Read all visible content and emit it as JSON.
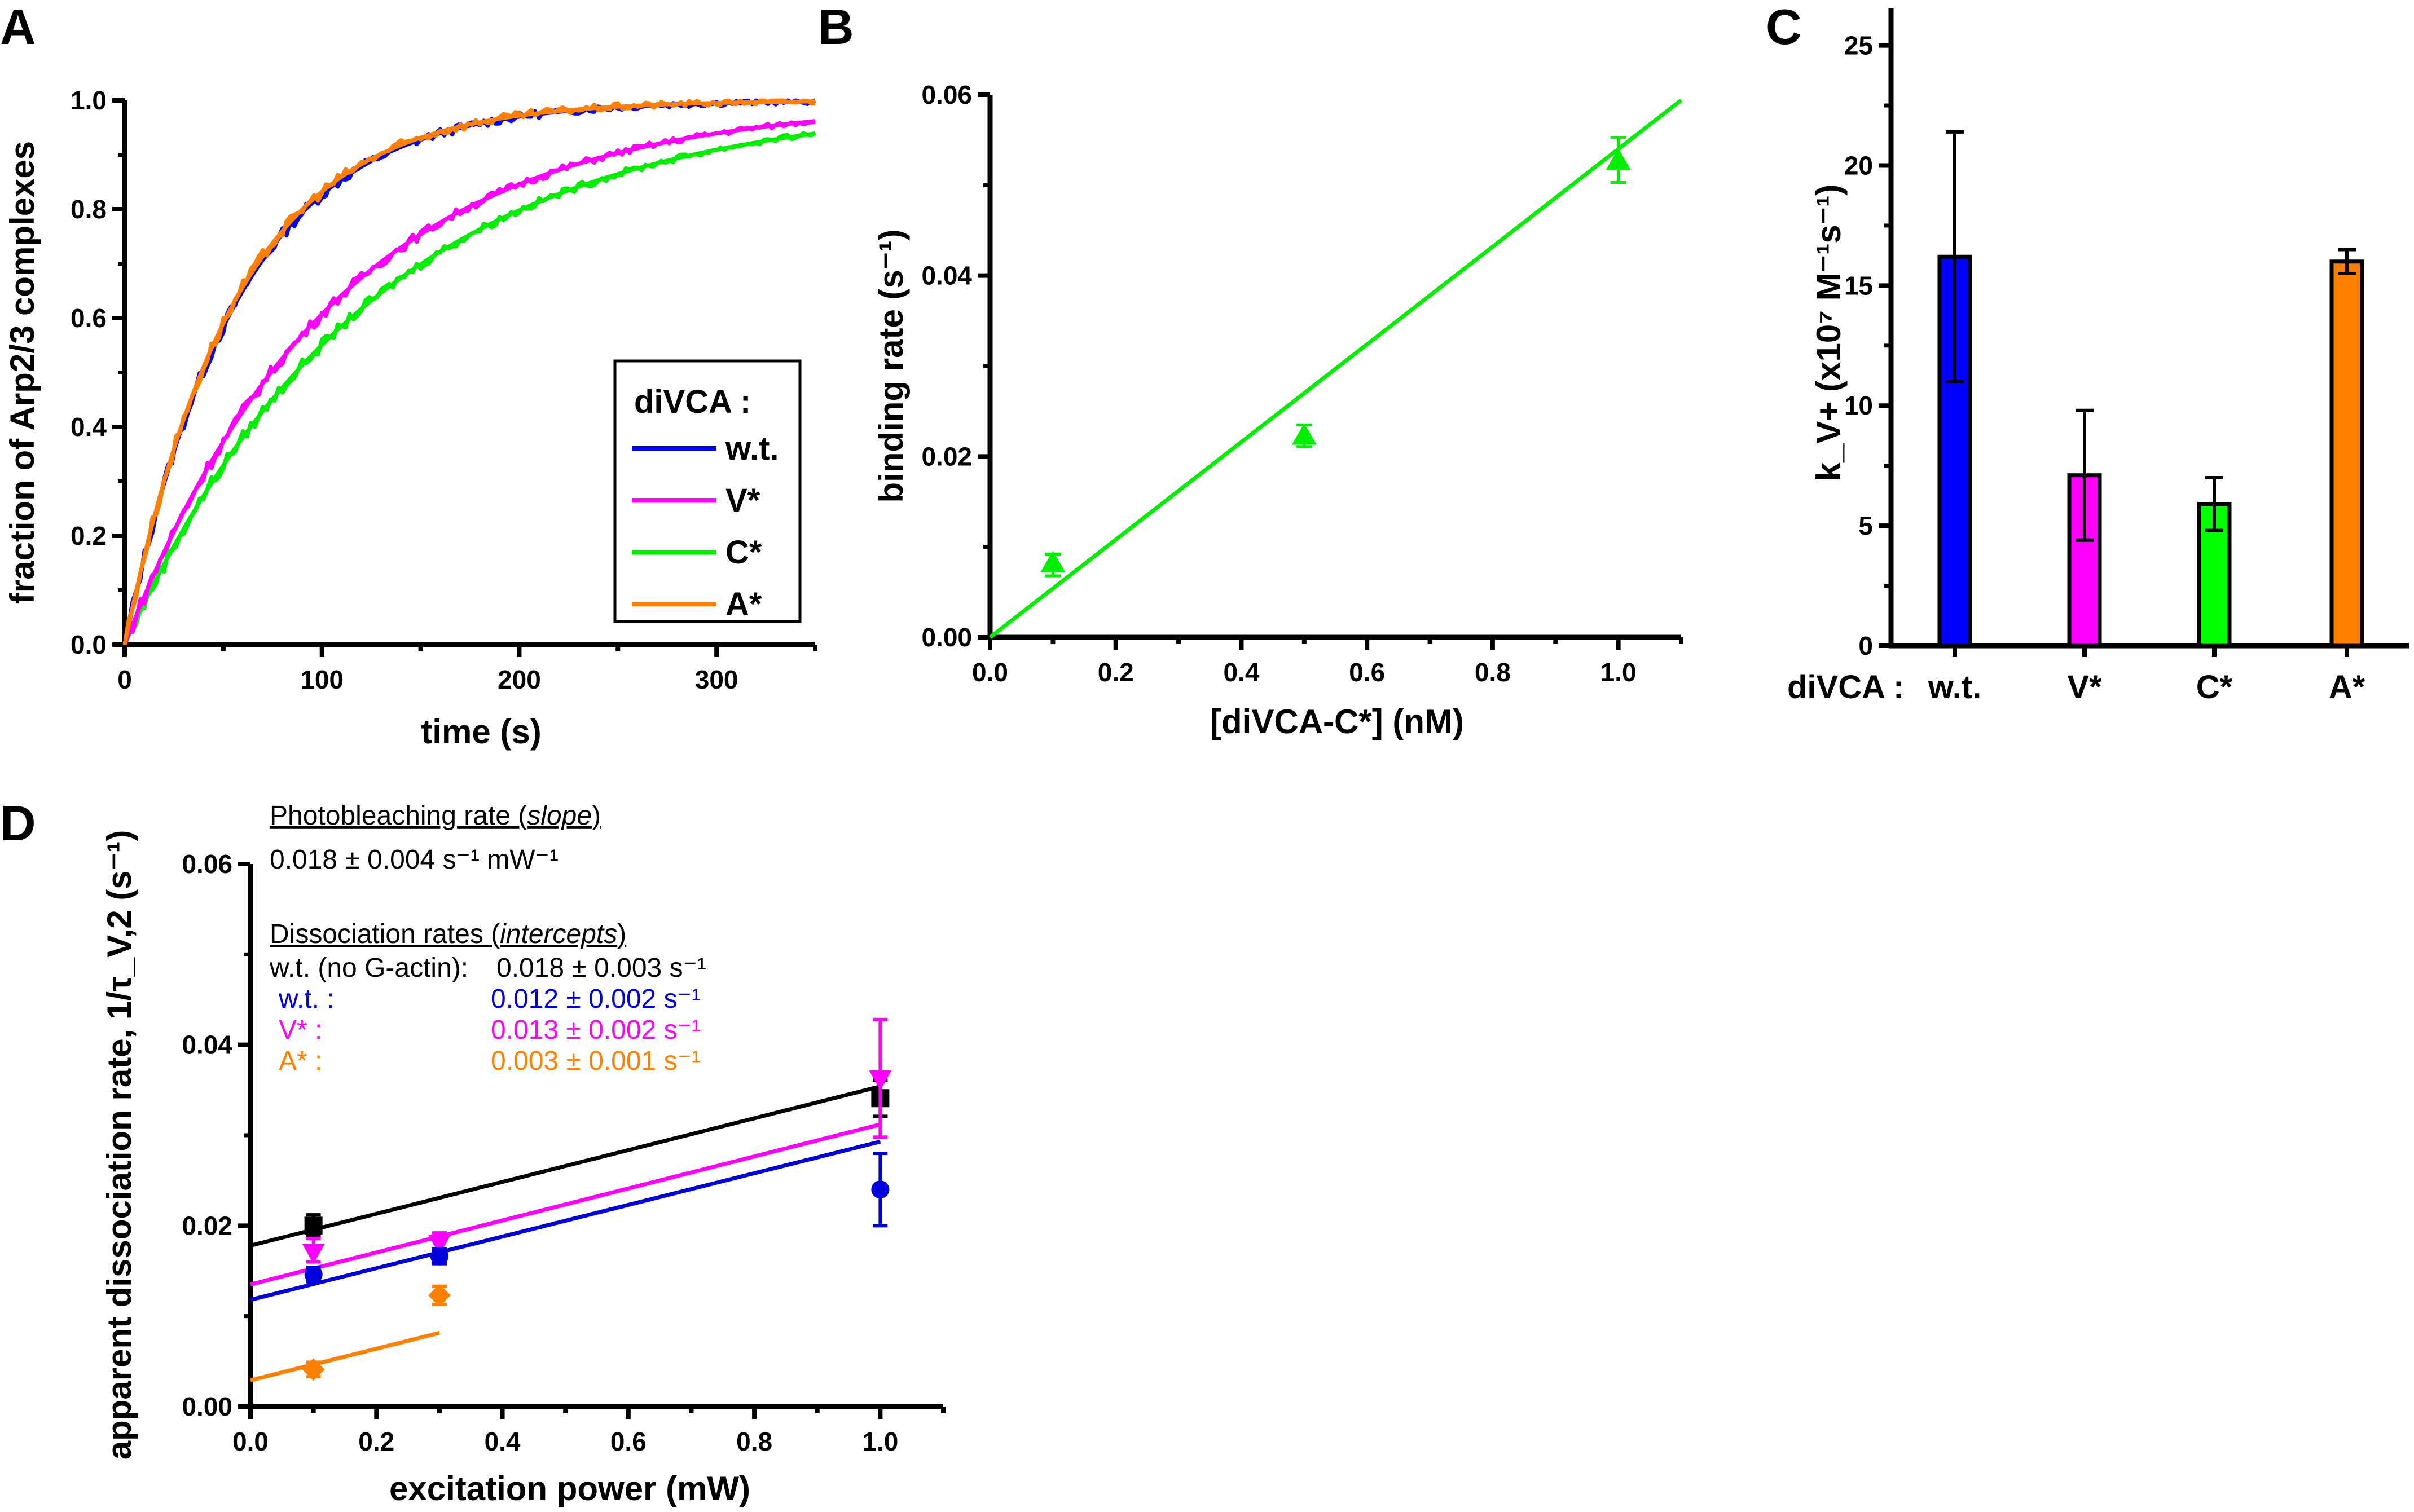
{
  "chart_data": [
    {
      "panel": "A",
      "type": "line",
      "xlabel": "time (s)",
      "ylabel": "fraction of Arp2/3 complexes",
      "xlim": [
        0,
        350
      ],
      "ylim": [
        0,
        1.0
      ],
      "xticks": [
        "0",
        "100",
        "200",
        "300"
      ],
      "yticks": [
        "0.0",
        "0.2",
        "0.4",
        "0.6",
        "0.8",
        "1.0"
      ],
      "legend": {
        "title": "diVCA :",
        "position": "center-right"
      },
      "series": [
        {
          "name": "w.t.",
          "color": "#0000ff",
          "model": "1-exp(-t/tau)",
          "tau": 57
        },
        {
          "name": "V*",
          "color": "#ff00ff",
          "model": "1-exp(-t/tau)",
          "tau": 107
        },
        {
          "name": "C*",
          "color": "#00ee00",
          "model": "1-exp(-t/tau)",
          "tau": 125
        },
        {
          "name": "A*",
          "color": "#ff8000",
          "model": "1-exp(-t/tau)",
          "tau": 56
        }
      ]
    },
    {
      "panel": "B",
      "type": "scatter",
      "xlabel": "[diVCA-C*] (nM)",
      "ylabel": "binding rate (s⁻¹)",
      "xlim": [
        0,
        1.1
      ],
      "ylim": [
        0,
        0.06
      ],
      "xticks": [
        "0.0",
        "0.2",
        "0.4",
        "0.6",
        "0.8",
        "1.0"
      ],
      "yticks": [
        "0.00",
        "0.02",
        "0.04",
        "0.06"
      ],
      "color": "#00ee00",
      "points": [
        {
          "x": 0.1,
          "y": 0.0082,
          "err_low": 0.0068,
          "err_high": 0.0092
        },
        {
          "x": 0.5,
          "y": 0.0223,
          "err_low": 0.0211,
          "err_high": 0.0235
        },
        {
          "x": 1.0,
          "y": 0.0527,
          "err_low": 0.0503,
          "err_high": 0.0553
        }
      ],
      "fit": {
        "slope": 0.054,
        "intercept": 0.0
      }
    },
    {
      "panel": "C",
      "type": "bar",
      "ylabel": "k_V+ (x10⁷ M⁻¹s⁻¹)",
      "ylim": [
        0,
        26
      ],
      "yticks": [
        "0",
        "5",
        "10",
        "15",
        "20",
        "25"
      ],
      "category_label": "diVCA :",
      "categories": [
        "w.t.",
        "V*",
        "C*",
        "A*"
      ],
      "values": [
        16.2,
        7.1,
        5.9,
        16.0
      ],
      "err_low": [
        11.0,
        4.4,
        4.8,
        15.5
      ],
      "err_high": [
        21.4,
        9.8,
        7.0,
        16.5
      ],
      "colors": [
        "#0000ff",
        "#ff00ff",
        "#00ff00",
        "#ff8000"
      ]
    },
    {
      "panel": "D",
      "type": "scatter",
      "xlabel": "excitation power (mW)",
      "ylabel": "apparent dissociation rate, 1/τ_V,2 (s⁻¹)",
      "xlim": [
        0,
        1.1
      ],
      "ylim": [
        0,
        0.06
      ],
      "xticks": [
        "0.0",
        "0.2",
        "0.4",
        "0.6",
        "0.8",
        "1.0"
      ],
      "yticks": [
        "0.00",
        "0.02",
        "0.04",
        "0.06"
      ],
      "series": [
        {
          "name": "w.t. (no G-actin)",
          "color": "#000000",
          "marker": "square",
          "points": [
            {
              "x": 0.1,
              "y": 0.02,
              "lo": 0.0188,
              "hi": 0.0212
            },
            {
              "x": 1.0,
              "y": 0.0341,
              "lo": 0.0321,
              "hi": 0.0361
            }
          ],
          "fit": {
            "slope": 0.0176,
            "intercept": 0.0178,
            "xmax": 1.0
          }
        },
        {
          "name": "V*",
          "color": "#ff00ff",
          "marker": "triangle-down",
          "points": [
            {
              "x": 0.1,
              "y": 0.017,
              "lo": 0.016,
              "hi": 0.0186
            },
            {
              "x": 0.3,
              "y": 0.018,
              "lo": 0.0168,
              "hi": 0.0192
            },
            {
              "x": 1.0,
              "y": 0.0362,
              "lo": 0.0298,
              "hi": 0.0428
            }
          ],
          "fit": {
            "slope": 0.0177,
            "intercept": 0.0135,
            "xmax": 1.0
          }
        },
        {
          "name": "w.t.",
          "color": "#0000dd",
          "marker": "circle",
          "points": [
            {
              "x": 0.1,
              "y": 0.0146,
              "lo": 0.0138,
              "hi": 0.0154
            },
            {
              "x": 0.3,
              "y": 0.0166,
              "lo": 0.0158,
              "hi": 0.0174
            },
            {
              "x": 1.0,
              "y": 0.024,
              "lo": 0.02,
              "hi": 0.028
            }
          ],
          "fit": {
            "slope": 0.0175,
            "intercept": 0.0118,
            "xmax": 1.0
          }
        },
        {
          "name": "A*",
          "color": "#ff8000",
          "marker": "diamond",
          "points": [
            {
              "x": 0.1,
              "y": 0.0041,
              "lo": 0.0033,
              "hi": 0.0049
            },
            {
              "x": 0.3,
              "y": 0.0123,
              "lo": 0.0113,
              "hi": 0.0133
            }
          ],
          "fit": {
            "slope": 0.0175,
            "intercept": 0.0029,
            "xmax": 0.3
          }
        }
      ],
      "annotations": {
        "slope_heading": "Photobleaching rate (",
        "slope_heading_italic": "slope",
        "slope_value": "0.018 ± 0.004 s⁻¹ mW⁻¹",
        "intercept_heading": "Dissociation rates (",
        "intercept_heading_italic": "intercepts",
        "rows": [
          {
            "label": "w.t. (no G-actin):",
            "value": "0.018 ± 0.003 s⁻¹",
            "color": "#000000"
          },
          {
            "label": "w.t. :",
            "value": "0.012 ± 0.002 s⁻¹",
            "color": "#0000dd"
          },
          {
            "label": "V*   :",
            "value": "0.013 ± 0.002 s⁻¹",
            "color": "#ff00ff"
          },
          {
            "label": "A*   :",
            "value": "0.003 ± 0.001 s⁻¹",
            "color": "#ff8000"
          }
        ]
      }
    }
  ],
  "panel_labels": [
    "A",
    "B",
    "C",
    "D"
  ]
}
